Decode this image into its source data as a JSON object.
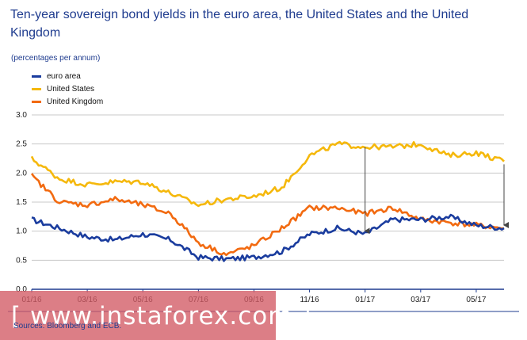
{
  "header": {
    "title": "Ten-year sovereign bond yields in the euro area, the United States and the United Kingdom",
    "subtitle": "(percentages per annum)"
  },
  "footer": {
    "source": "Sources: Bloomberg and ECB."
  },
  "watermark": {
    "text": "[ www.instaforex.com ]"
  },
  "colors": {
    "euro_area": "#1a3c9e",
    "united_states": "#f5b80c",
    "united_kingdom": "#f26a10",
    "axis": "#1f3c8f",
    "grid": "#c8c8c8"
  },
  "chart_data": {
    "type": "line",
    "title": "Ten-year sovereign bond yields in the euro area, the United States and the United Kingdom",
    "ylabel": "(percentages per annum)",
    "ylim": [
      0,
      3
    ],
    "yticks": [
      "0.0",
      "0.5",
      "1.0",
      "1.5",
      "2.0",
      "2.5",
      "3.0"
    ],
    "xticks": [
      "01/16",
      "03/16",
      "05/16",
      "07/16",
      "09/16",
      "11/16",
      "01/17",
      "03/17",
      "05/17"
    ],
    "grid": true,
    "legend": "top-left",
    "x": [
      "01/16",
      "02/16",
      "03/16",
      "04/16",
      "05/16",
      "06/16",
      "07/16",
      "08/16",
      "09/16",
      "10/16",
      "11/16",
      "12/16",
      "01/17",
      "02/17",
      "03/17",
      "04/17",
      "05/17",
      "06/17"
    ],
    "series": [
      {
        "name": "euro area",
        "color": "#1a3c9e",
        "values": [
          1.2,
          1.05,
          0.9,
          0.85,
          0.95,
          0.85,
          0.55,
          0.52,
          0.55,
          0.65,
          0.95,
          1.05,
          0.95,
          1.2,
          1.2,
          1.25,
          1.1,
          1.05
        ]
      },
      {
        "name": "United States",
        "color": "#f5b80c",
        "values": [
          2.25,
          1.9,
          1.8,
          1.85,
          1.85,
          1.65,
          1.45,
          1.55,
          1.6,
          1.75,
          2.3,
          2.5,
          2.45,
          2.45,
          2.5,
          2.3,
          2.35,
          2.2
        ]
      },
      {
        "name": "United Kingdom",
        "color": "#f26a10",
        "values": [
          1.95,
          1.5,
          1.45,
          1.55,
          1.45,
          1.3,
          0.8,
          0.6,
          0.75,
          1.05,
          1.4,
          1.4,
          1.3,
          1.4,
          1.2,
          1.15,
          1.1,
          1.05
        ]
      }
    ],
    "arrows": [
      {
        "x": "01/17",
        "from": 2.45,
        "to": 0.95
      },
      {
        "x": "06/17",
        "from": 2.15,
        "to": 1.05
      }
    ]
  }
}
